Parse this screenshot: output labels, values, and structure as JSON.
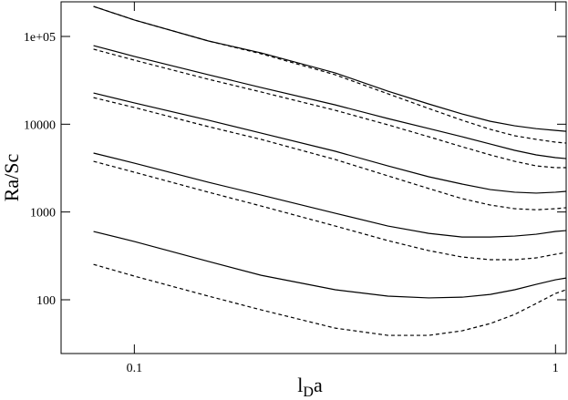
{
  "chart_data": {
    "type": "line",
    "xscale": "log",
    "yscale": "log",
    "ylabel": "Ra/Sc",
    "xlabel": {
      "base": "l",
      "subscript": "D",
      "after": "a"
    },
    "x": [
      0.08,
      0.1,
      0.15,
      0.2,
      0.3,
      0.4,
      0.5,
      0.6,
      0.7,
      0.8,
      0.9,
      1.0,
      1.06
    ],
    "xlim": [
      0.067,
      1.06
    ],
    "ylim": [
      24.4,
      248000
    ],
    "xticks": [
      0.1,
      1
    ],
    "yticks": [
      100,
      1000,
      10000,
      {
        "value": 100000,
        "label": "1e+05"
      }
    ],
    "series": [
      {
        "color": "#000000",
        "linestyle": "solid",
        "values": [
          220000,
          154000,
          88700,
          65000,
          38400,
          23800,
          17000,
          13100,
          10800,
          9600,
          8900,
          8500,
          8300
        ]
      },
      {
        "color": "#000000",
        "linestyle": "dashed",
        "values": [
          220000,
          154000,
          88700,
          63500,
          36600,
          22200,
          15100,
          11100,
          8740,
          7390,
          6720,
          6250,
          6100
        ]
      },
      {
        "color": "#000000",
        "linestyle": "solid",
        "values": [
          78700,
          59200,
          36600,
          26200,
          16600,
          11600,
          8930,
          7200,
          5950,
          5040,
          4470,
          4160,
          4060
        ]
      },
      {
        "color": "#000000",
        "linestyle": "dashed",
        "values": [
          71600,
          53700,
          32500,
          23300,
          14400,
          9840,
          7200,
          5540,
          4470,
          3780,
          3350,
          3200,
          3200
        ]
      },
      {
        "color": "#000000",
        "linestyle": "solid",
        "values": [
          22700,
          17500,
          11100,
          7930,
          4920,
          3350,
          2520,
          2080,
          1800,
          1680,
          1640,
          1680,
          1720
        ]
      },
      {
        "color": "#000000",
        "linestyle": "dashed",
        "values": [
          20100,
          15500,
          9380,
          6720,
          3960,
          2580,
          1850,
          1420,
          1200,
          1090,
          1060,
          1090,
          1120
        ]
      },
      {
        "color": "#000000",
        "linestyle": "solid",
        "values": [
          4690,
          3600,
          2180,
          1560,
          966,
          692,
          571,
          519,
          519,
          532,
          558,
          600,
          614
        ]
      },
      {
        "color": "#000000",
        "linestyle": "dashed",
        "values": [
          3780,
          2840,
          1680,
          1170,
          692,
          472,
          363,
          307,
          286,
          286,
          300,
          330,
          346
        ]
      },
      {
        "color": "#000000",
        "linestyle": "solid",
        "values": [
          600,
          461,
          273,
          190,
          130,
          110,
          105,
          107,
          115,
          130,
          150,
          169,
          177
        ]
      },
      {
        "color": "#000000",
        "linestyle": "dashed",
        "values": [
          253,
          186,
          110,
          76.7,
          47.5,
          39.3,
          39.3,
          44.3,
          53.6,
          68.1,
          90.7,
          118,
          130
        ]
      }
    ]
  }
}
